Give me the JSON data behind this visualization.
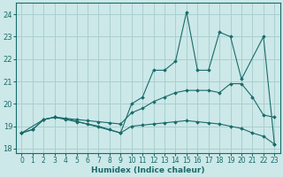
{
  "xlabel": "Humidex (Indice chaleur)",
  "bg_color": "#cce8e8",
  "line_color": "#1a6b6b",
  "grid_color": "#aacfcf",
  "xlim": [
    -0.5,
    23.5
  ],
  "ylim": [
    17.8,
    24.5
  ],
  "xticks": [
    0,
    1,
    2,
    3,
    4,
    5,
    6,
    7,
    8,
    9,
    10,
    11,
    12,
    13,
    14,
    15,
    16,
    17,
    18,
    19,
    20,
    21,
    22,
    23
  ],
  "yticks": [
    18,
    19,
    20,
    21,
    22,
    23,
    24
  ],
  "lines": [
    {
      "x": [
        0,
        1,
        2,
        3,
        4,
        5,
        6,
        7,
        8,
        9,
        10,
        11,
        12,
        13,
        14,
        15,
        16,
        17,
        18,
        19,
        20,
        21,
        22,
        23
      ],
      "y": [
        18.7,
        18.85,
        19.3,
        19.4,
        19.3,
        19.2,
        19.1,
        19.0,
        18.85,
        18.7,
        19.0,
        19.05,
        19.1,
        19.15,
        19.2,
        19.25,
        19.2,
        19.15,
        19.1,
        19.0,
        18.9,
        18.7,
        18.55,
        18.2
      ]
    },
    {
      "x": [
        0,
        1,
        2,
        3,
        4,
        5,
        6,
        7,
        8,
        9,
        10,
        11,
        12,
        13,
        14,
        15,
        16,
        17,
        18,
        19,
        20,
        21,
        22,
        23
      ],
      "y": [
        18.7,
        18.85,
        19.3,
        19.4,
        19.35,
        19.3,
        19.25,
        19.2,
        19.15,
        19.1,
        19.6,
        19.8,
        20.1,
        20.3,
        20.5,
        20.6,
        20.6,
        20.6,
        20.5,
        20.9,
        20.9,
        20.3,
        19.5,
        19.4
      ]
    },
    {
      "x": [
        0,
        2,
        3,
        4,
        9,
        10,
        11,
        12,
        13,
        14,
        15,
        16,
        17,
        18,
        19,
        20,
        22,
        23
      ],
      "y": [
        18.7,
        19.3,
        19.4,
        19.35,
        18.7,
        20.0,
        20.3,
        21.5,
        21.5,
        21.9,
        24.1,
        21.5,
        21.5,
        23.2,
        23.0,
        21.1,
        23.0,
        18.2
      ]
    }
  ]
}
